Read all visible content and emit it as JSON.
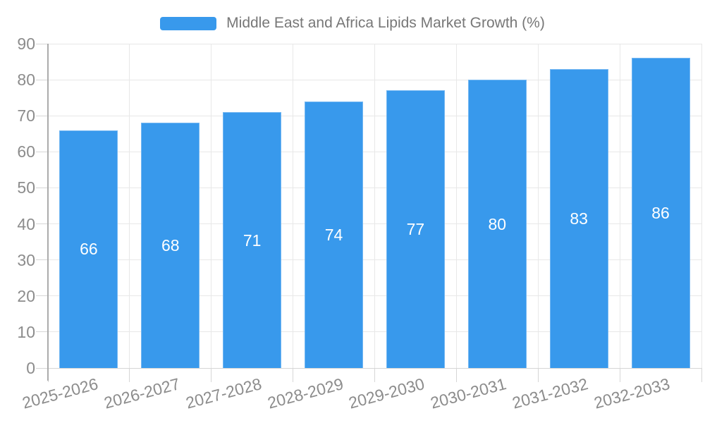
{
  "legend": {
    "label": "Middle East and Africa Lipids Market Growth (%)"
  },
  "chart_data": {
    "type": "bar",
    "title": "Middle East and Africa Lipids Market Growth (%)",
    "categories": [
      "2025-2026",
      "2026-2027",
      "2027-2028",
      "2028-2029",
      "2029-2030",
      "2030-2031",
      "2031-2032",
      "2032-2033"
    ],
    "values": [
      66,
      68,
      71,
      74,
      77,
      80,
      83,
      86
    ],
    "xlabel": "",
    "ylabel": "",
    "ylim": [
      0,
      90
    ],
    "ytick_step": 10,
    "yticks": [
      0,
      10,
      20,
      30,
      40,
      50,
      60,
      70,
      80,
      90
    ],
    "grid": true,
    "legend_position": "top-center",
    "bar_labels_position": "inside-center",
    "colors": {
      "bar": "#3899ec",
      "bar_value_label": "#ffffff",
      "axis_tick_label": "#8c8c8c",
      "legend_text": "#777777",
      "gridline": "#e8e8e8",
      "baseline_and_ticks": "#d6d6d6",
      "y_axis_line": "#ababab",
      "background": "#ffffff"
    }
  }
}
